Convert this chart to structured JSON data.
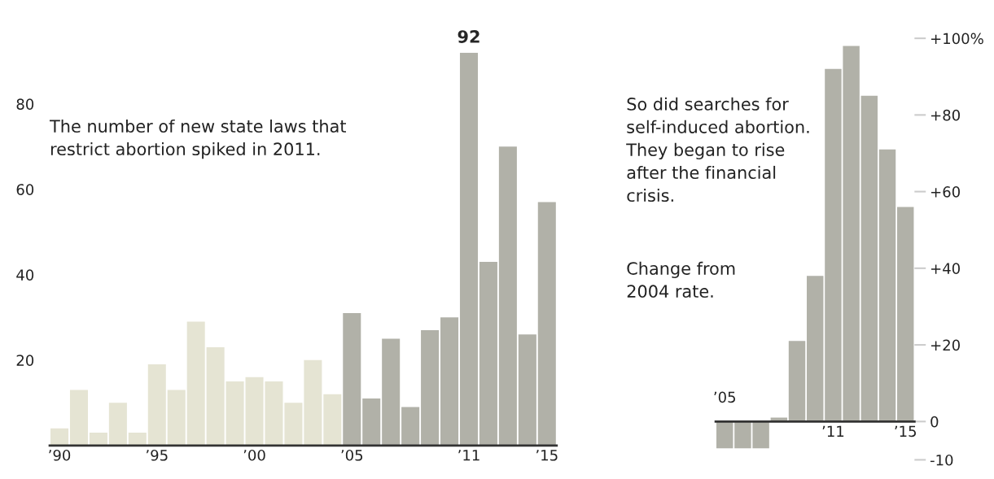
{
  "chart_data": [
    {
      "type": "bar",
      "categories": [
        "’90",
        null,
        null,
        null,
        null,
        "’95",
        null,
        null,
        null,
        null,
        "’00",
        null,
        null,
        null,
        null,
        "’05",
        null,
        null,
        null,
        null,
        null,
        "’11",
        null,
        null,
        null,
        "’15"
      ],
      "values": [
        4,
        13,
        3,
        10,
        3,
        19,
        13,
        29,
        23,
        15,
        16,
        15,
        10,
        20,
        12,
        31,
        11,
        25,
        9,
        27,
        30,
        92,
        43,
        70,
        26,
        57
      ],
      "colors": [
        "#e5e4d3",
        "#e5e4d3",
        "#e5e4d3",
        "#e5e4d3",
        "#e5e4d3",
        "#e5e4d3",
        "#e5e4d3",
        "#e5e4d3",
        "#e5e4d3",
        "#e5e4d3",
        "#e5e4d3",
        "#e5e4d3",
        "#e5e4d3",
        "#e5e4d3",
        "#e5e4d3",
        "#b1b1a8",
        "#b1b1a8",
        "#b1b1a8",
        "#b1b1a8",
        "#b1b1a8",
        "#b1b1a8",
        "#b1b1a8",
        "#b1b1a8",
        "#b1b1a8",
        "#b1b1a8",
        "#b1b1a8"
      ],
      "value_labels": [
        null,
        null,
        null,
        null,
        null,
        null,
        null,
        null,
        null,
        null,
        null,
        null,
        null,
        null,
        null,
        null,
        null,
        null,
        null,
        null,
        null,
        "92",
        null,
        null,
        null,
        null
      ],
      "ylim": [
        0,
        92
      ],
      "yticks": [
        20,
        40,
        60,
        80
      ],
      "grid": false,
      "annotations": [
        "The number of new state laws that\nrestrict abortion spiked in 2011."
      ]
    },
    {
      "type": "bar",
      "categories": [
        "’05",
        null,
        null,
        null,
        null,
        null,
        "’11",
        null,
        null,
        null,
        "’15"
      ],
      "values": [
        -7,
        -7,
        -7,
        1,
        21,
        38,
        92,
        98,
        85,
        71,
        56
      ],
      "colors": [
        "#b1b1a8",
        "#b1b1a8",
        "#b1b1a8",
        "#b1b1a8",
        "#b1b1a8",
        "#b1b1a8",
        "#b1b1a8",
        "#b1b1a8",
        "#b1b1a8",
        "#b1b1a8",
        "#b1b1a8"
      ],
      "ylim": [
        -10,
        100
      ],
      "yticks": [
        {
          "value": -10,
          "label": "-10"
        },
        0,
        {
          "value": 20,
          "label": "+20"
        },
        {
          "value": 40,
          "label": "+40"
        },
        {
          "value": 60,
          "label": "+60"
        },
        {
          "value": 80,
          "label": "+80"
        },
        {
          "value": 100,
          "label": "+100%"
        }
      ],
      "grid": false,
      "annotations": [
        "So did searches for\nself-induced abortion.\nThey began to rise\nafter the financial\ncrisis.",
        "Change from\n2004 rate."
      ]
    }
  ]
}
